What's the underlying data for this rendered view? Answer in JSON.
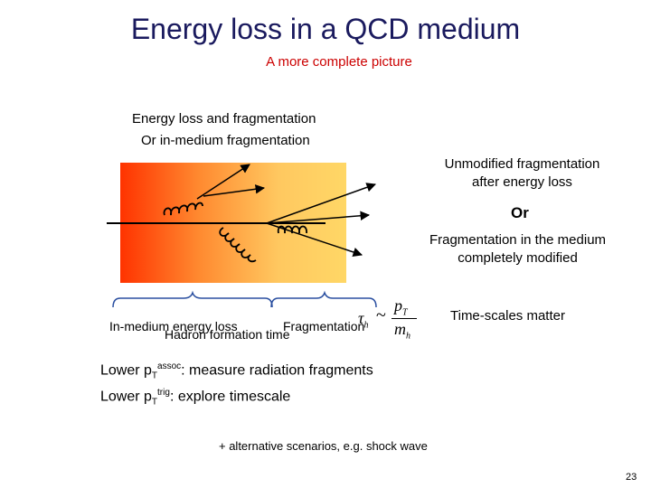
{
  "slide": {
    "title": "Energy loss in a QCD medium",
    "subtitle": "A more complete picture",
    "intro_line1": "Energy loss and fragmentation",
    "intro_line2": "Or in-medium fragmentation",
    "unmodified_line1": "Unmodified fragmentation",
    "unmodified_line2": "after energy loss",
    "or_label": "Or",
    "inmedium_line1": "Fragmentation in the medium",
    "inmedium_line2": "completely modified",
    "timescales_label": "Time-scales matter",
    "label_inmedium_energy_loss": "In-medium energy loss",
    "label_fragmentation": "Fragmentation",
    "label_hadron_formation": "Hadron formation time",
    "formula": {
      "tau": "τ",
      "tau_sub": "h",
      "sim": "~",
      "numerator": "p",
      "numerator_sub": "T",
      "denominator": "m",
      "denominator_sub": "h"
    },
    "bullet1": {
      "prefix": "Lower p",
      "sub": "T",
      "sup": "assoc",
      "suffix": ": measure radiation fragments"
    },
    "bullet2": {
      "prefix": "Lower p",
      "sub": "T",
      "sup": "trig",
      "suffix": ": explore timescale"
    },
    "footnote": "+ alternative scenarios, e.g. shock wave",
    "page_number": "23"
  },
  "colors": {
    "title": "#1a1a5e",
    "subtitle": "#cc0000",
    "medium_hot": "#ff3300",
    "medium_cool": "#ffd766"
  }
}
